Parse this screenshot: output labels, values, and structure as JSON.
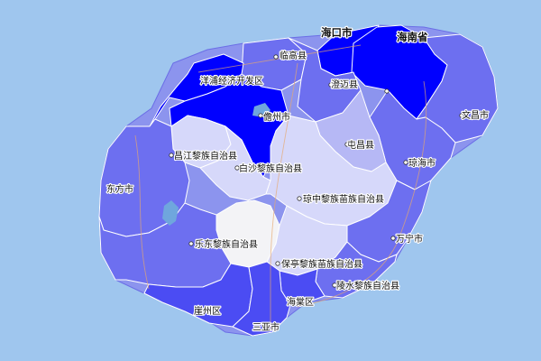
{
  "map": {
    "colors": {
      "ocean": "#9fc6ee",
      "land_default": "#8c94ee",
      "saturated_blue": "#0000ff",
      "deep_blue": "#4b4cf3",
      "mid_blue": "#6d6ff0",
      "light_blue": "#b6b8f5",
      "pale_blue": "#d6d8fa",
      "near_white": "#f3f3f6",
      "label_text": "#111111"
    },
    "regions": [
      {
        "id": "haikou",
        "label": "海口市",
        "fill": "saturated_blue"
      },
      {
        "id": "hainan_province",
        "label": "海南省",
        "fill": "saturated_blue"
      },
      {
        "id": "lingao",
        "label": "临高县",
        "fill": "mid_blue"
      },
      {
        "id": "chengmai",
        "label": "澄迈县",
        "fill": "mid_blue"
      },
      {
        "id": "yangpu",
        "label": "洋浦经济开发区",
        "fill": "saturated_blue"
      },
      {
        "id": "danzhou",
        "label": "儋州市",
        "fill": "saturated_blue"
      },
      {
        "id": "wenchang",
        "label": "文昌市",
        "fill": "mid_blue"
      },
      {
        "id": "qionghai",
        "label": "琼海市",
        "fill": "mid_blue"
      },
      {
        "id": "tunchang",
        "label": "屯昌县",
        "fill": "light_blue"
      },
      {
        "id": "changjiang",
        "label": "昌江黎族自治县",
        "fill": "pale_blue"
      },
      {
        "id": "baisha",
        "label": "白沙黎族自治县",
        "fill": "pale_blue"
      },
      {
        "id": "qiongzhong",
        "label": "琼中黎族苗族自治县",
        "fill": "pale_blue"
      },
      {
        "id": "dongfang",
        "label": "东方市",
        "fill": "mid_blue"
      },
      {
        "id": "ledong",
        "label": "乐东黎族自治县",
        "fill": "near_white"
      },
      {
        "id": "wanning",
        "label": "万宁市",
        "fill": "mid_blue"
      },
      {
        "id": "baoting",
        "label": "保亭黎族苗族自治县",
        "fill": "pale_blue"
      },
      {
        "id": "lingshui",
        "label": "陵水黎族自治县",
        "fill": "mid_blue"
      },
      {
        "id": "haitang",
        "label": "海棠区",
        "fill": "deep_blue"
      },
      {
        "id": "yazhou",
        "label": "崖州区",
        "fill": "deep_blue"
      },
      {
        "id": "sanya",
        "label": "三亚市",
        "fill": "deep_blue"
      }
    ]
  }
}
